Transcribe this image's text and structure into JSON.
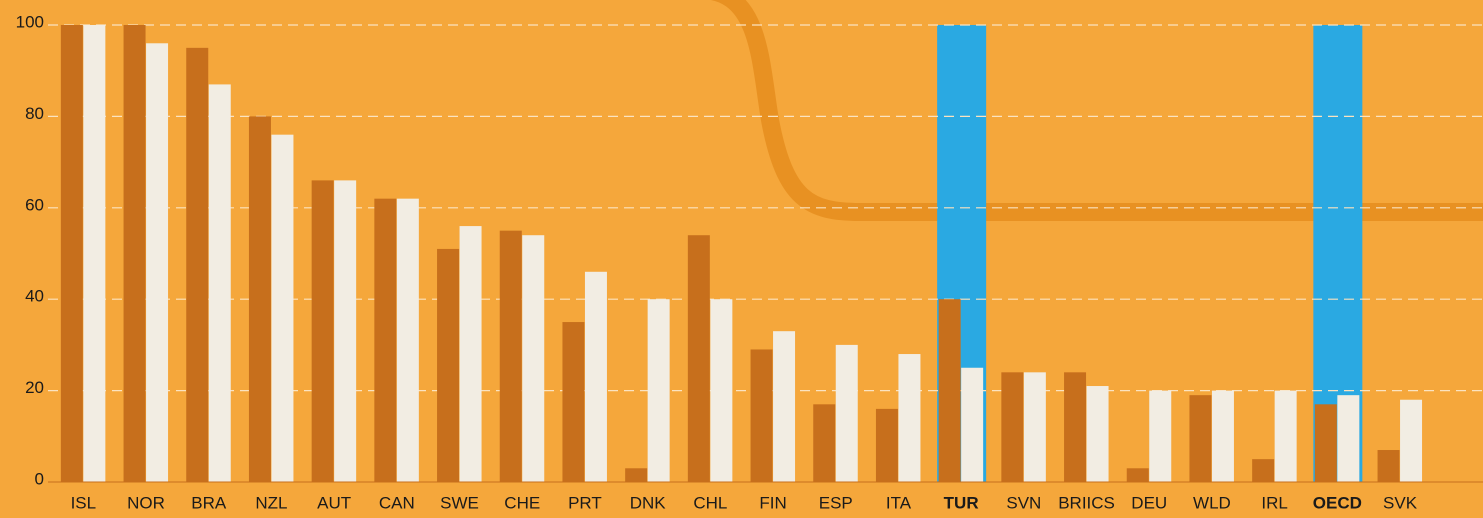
{
  "chart_data": {
    "type": "bar",
    "categories": [
      "ISL",
      "NOR",
      "BRA",
      "NZL",
      "AUT",
      "CAN",
      "SWE",
      "CHE",
      "PRT",
      "DNK",
      "CHL",
      "FIN",
      "ESP",
      "ITA",
      "TUR",
      "SVN",
      "BRIICS",
      "DEU",
      "WLD",
      "IRL",
      "OECD",
      "SVK"
    ],
    "series": [
      {
        "color": "#c76f1c",
        "values": [
          100,
          100,
          95,
          80,
          66,
          62,
          51,
          55,
          35,
          3,
          54,
          29,
          17,
          16,
          40,
          24,
          24,
          3,
          19,
          5,
          17,
          7
        ]
      },
      {
        "color": "#f2ede3",
        "values": [
          100,
          96,
          87,
          76,
          66,
          62,
          56,
          54,
          46,
          40,
          40,
          33,
          30,
          28,
          25,
          24,
          21,
          20,
          20,
          20,
          19,
          18
        ]
      }
    ],
    "highlighted": [
      false,
      false,
      false,
      false,
      false,
      false,
      false,
      false,
      false,
      false,
      false,
      false,
      false,
      false,
      true,
      false,
      false,
      false,
      false,
      false,
      true,
      false
    ],
    "highlight_color": "#2aa9e2",
    "ylim": [
      0,
      100
    ],
    "yticks": [
      0,
      20,
      40,
      60,
      80,
      100
    ],
    "grid": true
  }
}
